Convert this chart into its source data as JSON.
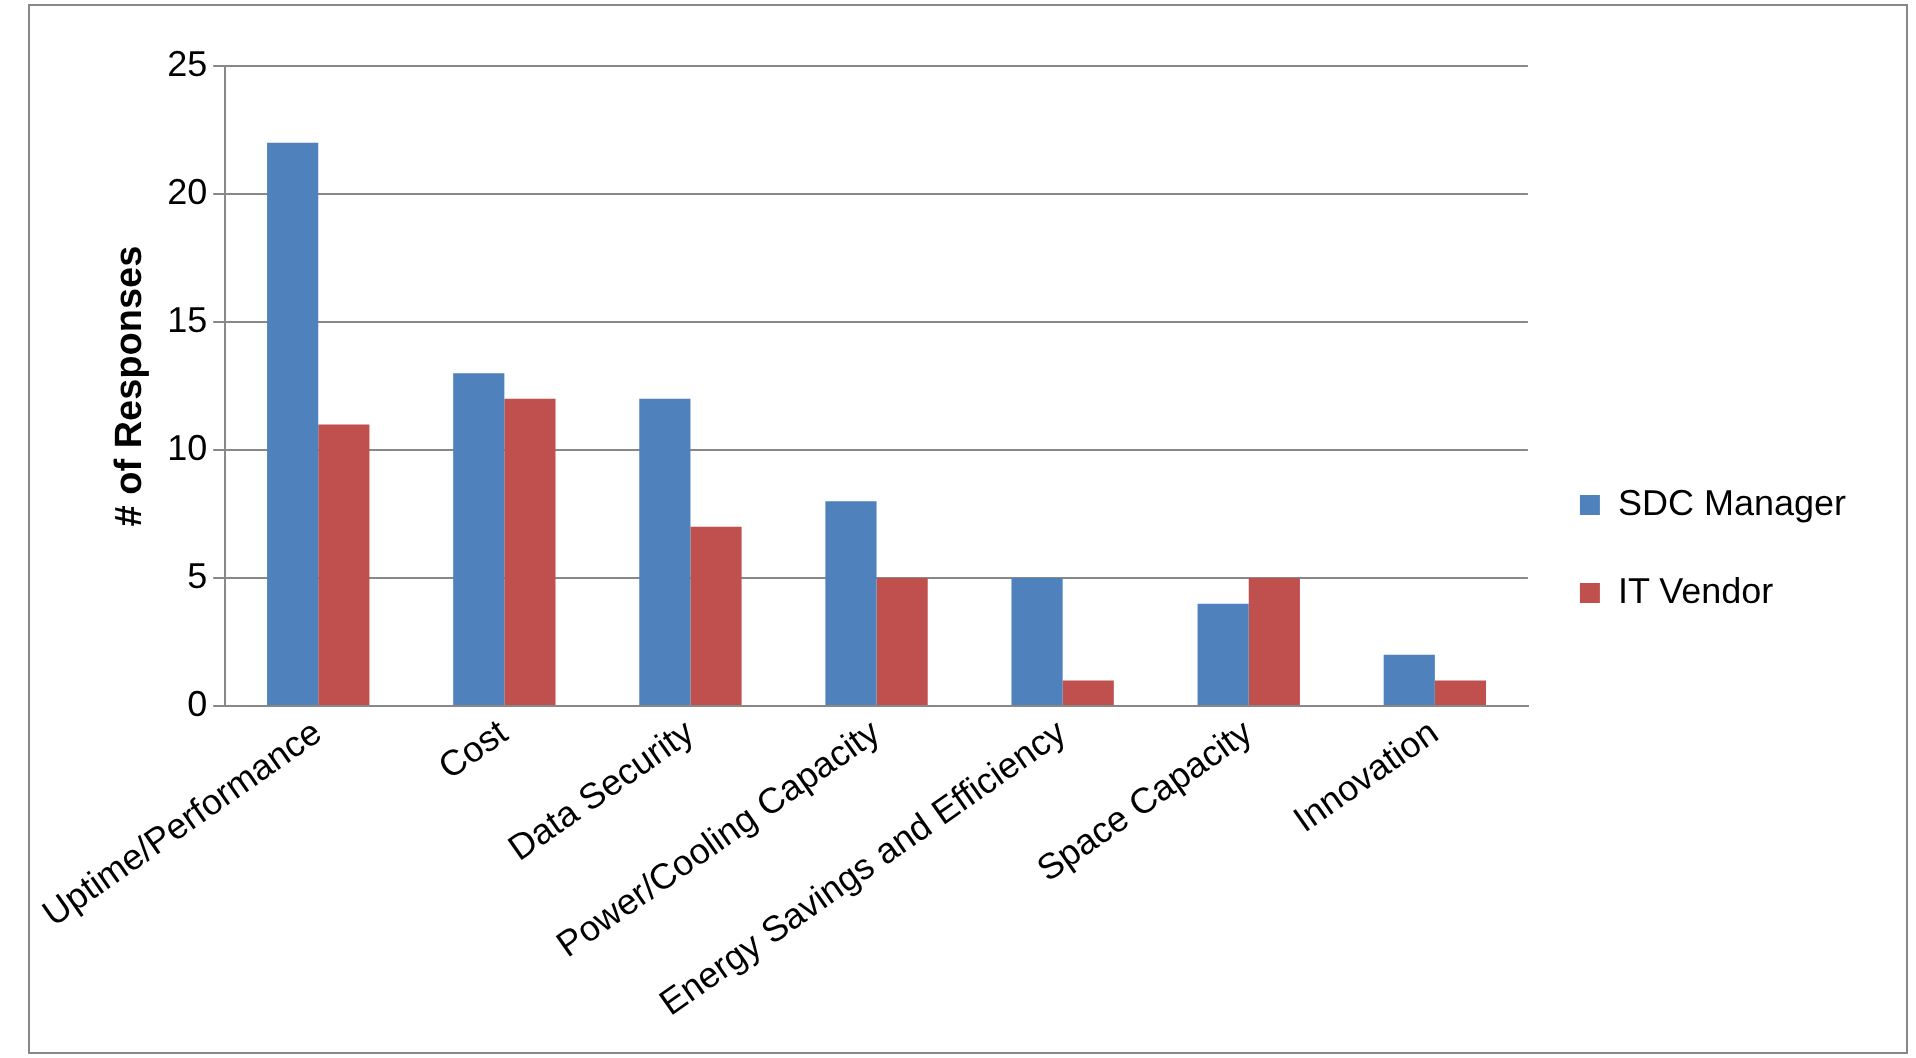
{
  "chart_data": {
    "type": "bar",
    "ylabel": "# of Responses",
    "categories": [
      "Uptime/Performance",
      "Cost",
      "Data Security",
      "Power/Cooling Capacity",
      "Energy Savings and Efficiency",
      "Space Capacity",
      "Innovation"
    ],
    "series": [
      {
        "name": "SDC Manager",
        "color": "#4f81bd",
        "values": [
          22,
          13,
          12,
          8,
          5,
          4,
          2
        ]
      },
      {
        "name": "IT Vendor",
        "color": "#c0504d",
        "values": [
          11,
          12,
          7,
          5,
          1,
          5,
          1
        ]
      }
    ],
    "ylim": [
      0,
      25
    ],
    "yticks": [
      0,
      5,
      10,
      15,
      20,
      25
    ],
    "grid": "y",
    "legend": "right"
  }
}
